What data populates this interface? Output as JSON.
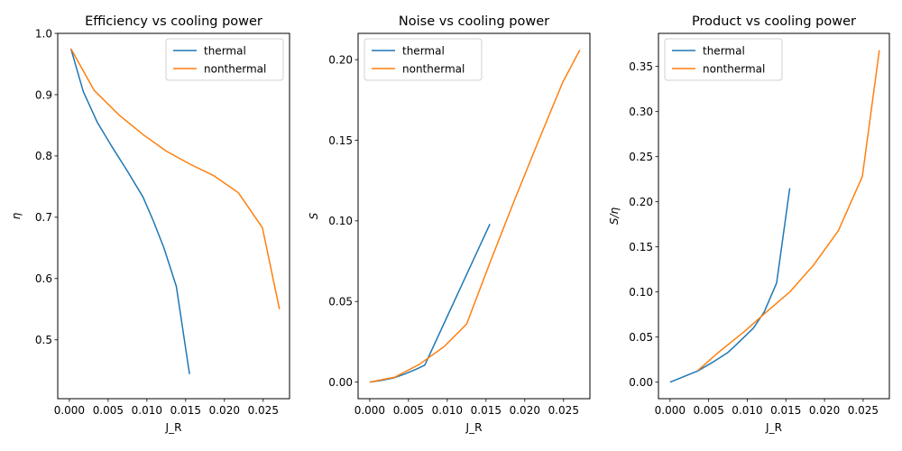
{
  "chart_data": [
    {
      "type": "line",
      "title": "Efficiency vs cooling power",
      "xlabel": "J_R",
      "ylabel": "η",
      "ylabel_italic": true,
      "xlim": [
        -0.0015,
        0.0284
      ],
      "ylim": [
        0.404,
        1.0
      ],
      "xticks": [
        0.0,
        0.005,
        0.01,
        0.015,
        0.02,
        0.025
      ],
      "xtick_labels": [
        "0.000",
        "0.005",
        "0.010",
        "0.015",
        "0.020",
        "0.025"
      ],
      "yticks": [
        0.5,
        0.6,
        0.7,
        0.8,
        0.9,
        1.0
      ],
      "ytick_labels": [
        "0.5",
        "0.6",
        "0.7",
        "0.8",
        "0.9",
        "1.0"
      ],
      "legend": "top-right",
      "series": [
        {
          "name": "thermal",
          "color": "#1f77b4",
          "x": [
            0.0002,
            0.0018,
            0.0036,
            0.0055,
            0.0075,
            0.0095,
            0.0108,
            0.0122,
            0.0138,
            0.0155
          ],
          "y": [
            0.975,
            0.905,
            0.855,
            0.815,
            0.775,
            0.733,
            0.695,
            0.65,
            0.587,
            0.444
          ]
        },
        {
          "name": "nonthermal",
          "color": "#ff7f0e",
          "x": [
            0.0002,
            0.0032,
            0.0064,
            0.0096,
            0.0125,
            0.0155,
            0.0186,
            0.0218,
            0.0249,
            0.0271
          ],
          "y": [
            0.975,
            0.907,
            0.867,
            0.834,
            0.808,
            0.787,
            0.768,
            0.74,
            0.683,
            0.55
          ]
        }
      ]
    },
    {
      "type": "line",
      "title": "Noise vs cooling power",
      "xlabel": "J_R",
      "ylabel": "S",
      "ylabel_italic": true,
      "xlim": [
        -0.0015,
        0.0284
      ],
      "ylim": [
        -0.0103,
        0.2163
      ],
      "xticks": [
        0.0,
        0.005,
        0.01,
        0.015,
        0.02,
        0.025
      ],
      "xtick_labels": [
        "0.000",
        "0.005",
        "0.010",
        "0.015",
        "0.020",
        "0.025"
      ],
      "yticks": [
        0.0,
        0.05,
        0.1,
        0.15,
        0.2
      ],
      "ytick_labels": [
        "0.00",
        "0.05",
        "0.10",
        "0.15",
        "0.20"
      ],
      "legend": "top-left",
      "series": [
        {
          "name": "thermal",
          "color": "#1f77b4",
          "x": [
            0.0,
            0.0015,
            0.003,
            0.0045,
            0.006,
            0.0071,
            0.0155
          ],
          "y": [
            0.0,
            0.001,
            0.0025,
            0.005,
            0.008,
            0.0105,
            0.098
          ]
        },
        {
          "name": "nonthermal",
          "color": "#ff7f0e",
          "x": [
            0.0,
            0.0032,
            0.0064,
            0.0096,
            0.0125,
            0.0155,
            0.0186,
            0.0218,
            0.0249,
            0.0271
          ],
          "y": [
            0.0,
            0.003,
            0.011,
            0.022,
            0.036,
            0.074,
            0.112,
            0.15,
            0.186,
            0.206
          ]
        }
      ]
    },
    {
      "type": "line",
      "title": "Product vs cooling power",
      "xlabel": "J_R",
      "ylabel": "S/η",
      "ylabel_italic": true,
      "xlim": [
        -0.0015,
        0.0284
      ],
      "ylim": [
        -0.0183,
        0.3867
      ],
      "xticks": [
        0.0,
        0.005,
        0.01,
        0.015,
        0.02,
        0.025
      ],
      "xtick_labels": [
        "0.000",
        "0.005",
        "0.010",
        "0.015",
        "0.020",
        "0.025"
      ],
      "yticks": [
        0.0,
        0.05,
        0.1,
        0.15,
        0.2,
        0.25,
        0.3,
        0.35
      ],
      "ytick_labels": [
        "0.00",
        "0.05",
        "0.10",
        "0.15",
        "0.20",
        "0.25",
        "0.30",
        "0.35"
      ],
      "legend": "top-left",
      "series": [
        {
          "name": "thermal",
          "color": "#1f77b4",
          "x": [
            0.0,
            0.0036,
            0.0055,
            0.0075,
            0.009,
            0.0108,
            0.0122,
            0.0138,
            0.0155
          ],
          "y": [
            0.0,
            0.0125,
            0.022,
            0.033,
            0.045,
            0.06,
            0.078,
            0.11,
            0.215
          ]
        },
        {
          "name": "nonthermal",
          "color": "#ff7f0e",
          "x": [
            0.0036,
            0.0064,
            0.0096,
            0.0125,
            0.0155,
            0.0186,
            0.0218,
            0.0249,
            0.0271
          ],
          "y": [
            0.013,
            0.034,
            0.056,
            0.078,
            0.1,
            0.13,
            0.168,
            0.228,
            0.368
          ]
        }
      ]
    }
  ]
}
